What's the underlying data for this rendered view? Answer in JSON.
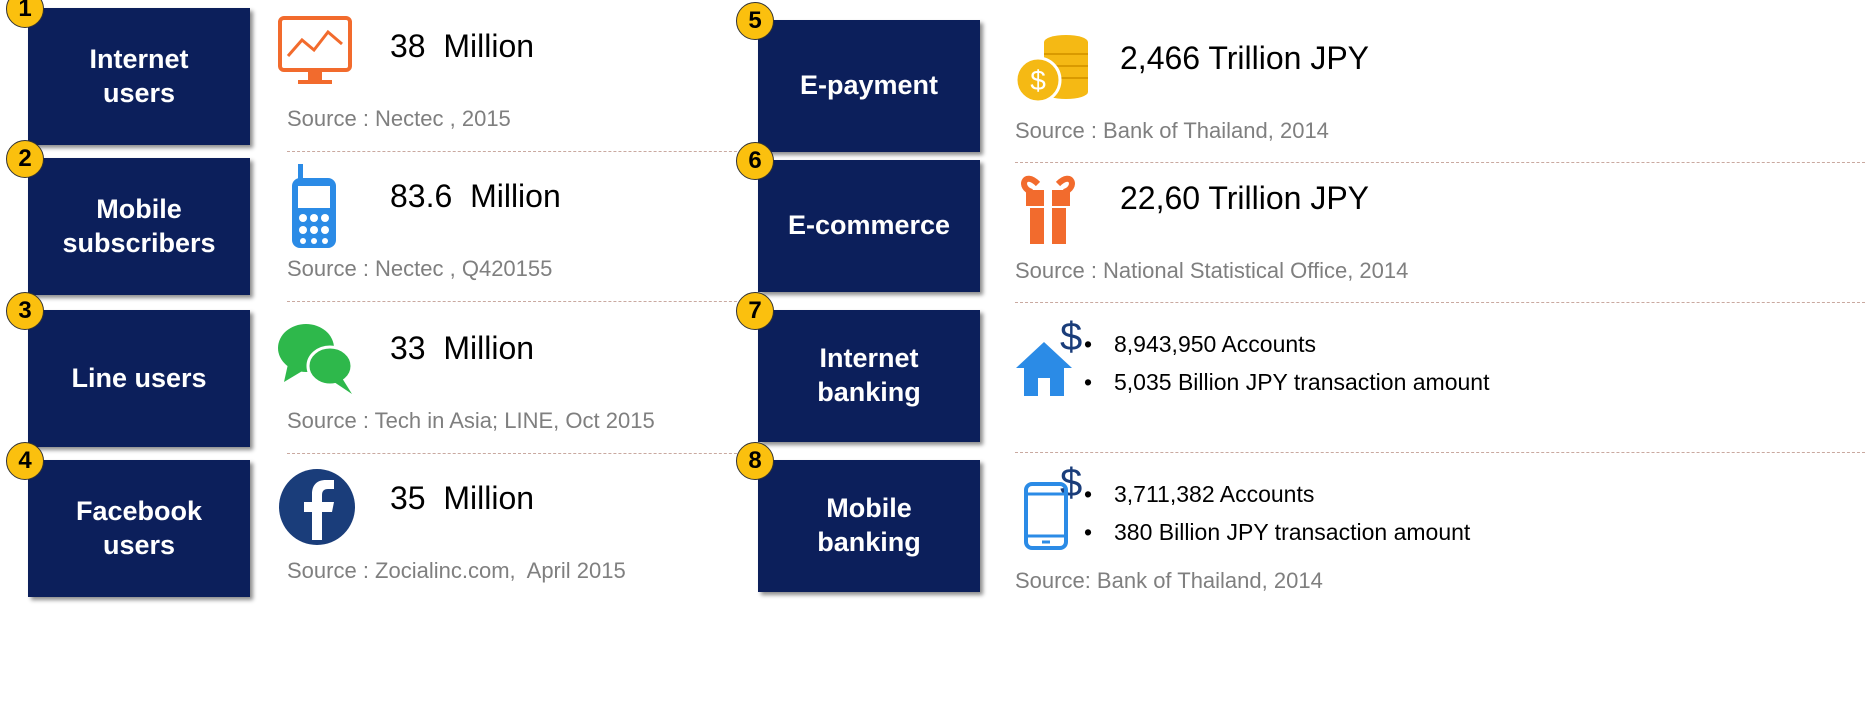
{
  "items": [
    {
      "number": "1",
      "label": [
        "Internet",
        "users"
      ],
      "value": "38  Million",
      "source": "Source : Nectec , 2015"
    },
    {
      "number": "2",
      "label": [
        "Mobile",
        "subscribers"
      ],
      "value": "83.6  Million",
      "source": "Source : Nectec , Q420155"
    },
    {
      "number": "3",
      "label": [
        "Line users"
      ],
      "value": "33  Million",
      "source": "Source : Tech in Asia; LINE, Oct 2015"
    },
    {
      "number": "4",
      "label": [
        "Facebook",
        "users"
      ],
      "value": "35  Million",
      "source": "Source : Zocialinc.com,  April 2015"
    },
    {
      "number": "5",
      "label": [
        "E-payment"
      ],
      "value": "2,466 Trillion JPY",
      "source": "Source : Bank of Thailand, 2014"
    },
    {
      "number": "6",
      "label": [
        "E-commerce"
      ],
      "value": "22,60 Trillion JPY",
      "source": "Source : National Statistical Office, 2014"
    },
    {
      "number": "7",
      "label": [
        "Internet",
        "banking"
      ],
      "bullets": [
        "8,943,950 Accounts",
        "5,035 Billion JPY transaction amount"
      ]
    },
    {
      "number": "8",
      "label": [
        "Mobile",
        "banking"
      ],
      "bullets": [
        "3,711,382 Accounts",
        "380 Billion JPY transaction amount"
      ],
      "source": "Source: Bank of Thailand, 2014"
    }
  ]
}
